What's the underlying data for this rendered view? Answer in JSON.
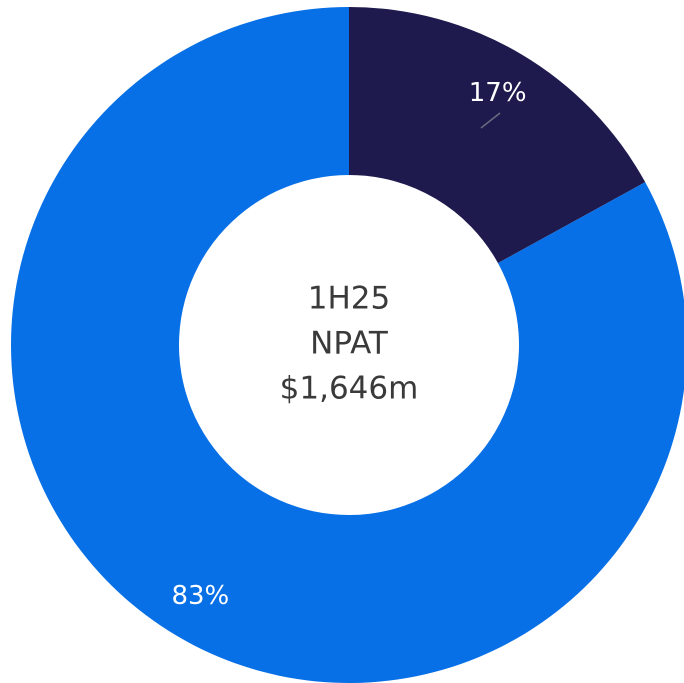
{
  "chart_data": {
    "type": "donut",
    "center_text": [
      "1H25",
      "NPAT",
      "$1,646m"
    ],
    "values": [
      17,
      83
    ],
    "value_labels": [
      "17%",
      "83%"
    ],
    "colors": [
      "#1e1a4d",
      "#0870e6"
    ]
  }
}
